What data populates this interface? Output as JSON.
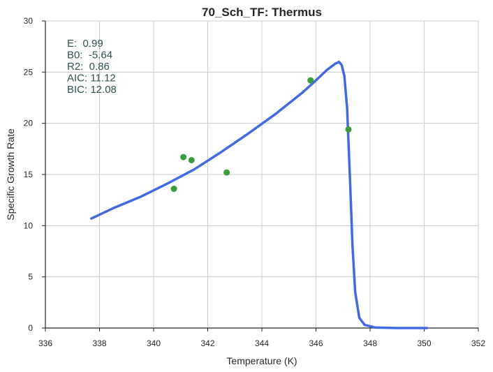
{
  "chart_data": {
    "type": "line",
    "title": "70_Sch_TF: Thermus",
    "xlabel": "Temperature (K)",
    "ylabel": "Specific Growth Rate",
    "xlim": [
      336,
      352
    ],
    "ylim": [
      0,
      30
    ],
    "xticks": [
      336,
      338,
      340,
      342,
      344,
      346,
      348,
      350,
      352
    ],
    "yticks": [
      0,
      5,
      10,
      15,
      20,
      25,
      30
    ],
    "grid": true,
    "annotations": [
      "E:  0.99",
      "B0:  -5.64",
      "R2:  0.86",
      "AIC: 11.12",
      "BIC: 12.08"
    ],
    "colors": {
      "fit_line": "#4169e1",
      "data_points": "#3a9c3a",
      "annotation_text": "#2f4f4f",
      "grid": "#cccccc"
    },
    "series": [
      {
        "type": "scatter",
        "x": [
          340.75,
          341.1,
          341.4,
          342.7,
          345.8,
          347.2
        ],
        "y": [
          13.6,
          16.7,
          16.4,
          15.2,
          24.2,
          19.4
        ]
      },
      {
        "type": "line",
        "x": [
          337.7,
          338.5,
          339.5,
          340.5,
          341.5,
          342.5,
          343.5,
          344.5,
          345.5,
          346.0,
          346.4,
          346.7,
          346.85,
          346.95,
          347.05,
          347.15,
          347.25,
          347.35,
          347.45,
          347.6,
          347.8,
          348.2,
          349.0,
          350.1
        ],
        "y": [
          10.7,
          11.7,
          12.8,
          14.1,
          15.5,
          17.2,
          19.0,
          20.9,
          23.0,
          24.2,
          25.2,
          25.8,
          26.0,
          25.7,
          24.6,
          21.5,
          15.0,
          8.0,
          3.5,
          1.0,
          0.3,
          0.05,
          0.0,
          0.0
        ]
      }
    ]
  }
}
